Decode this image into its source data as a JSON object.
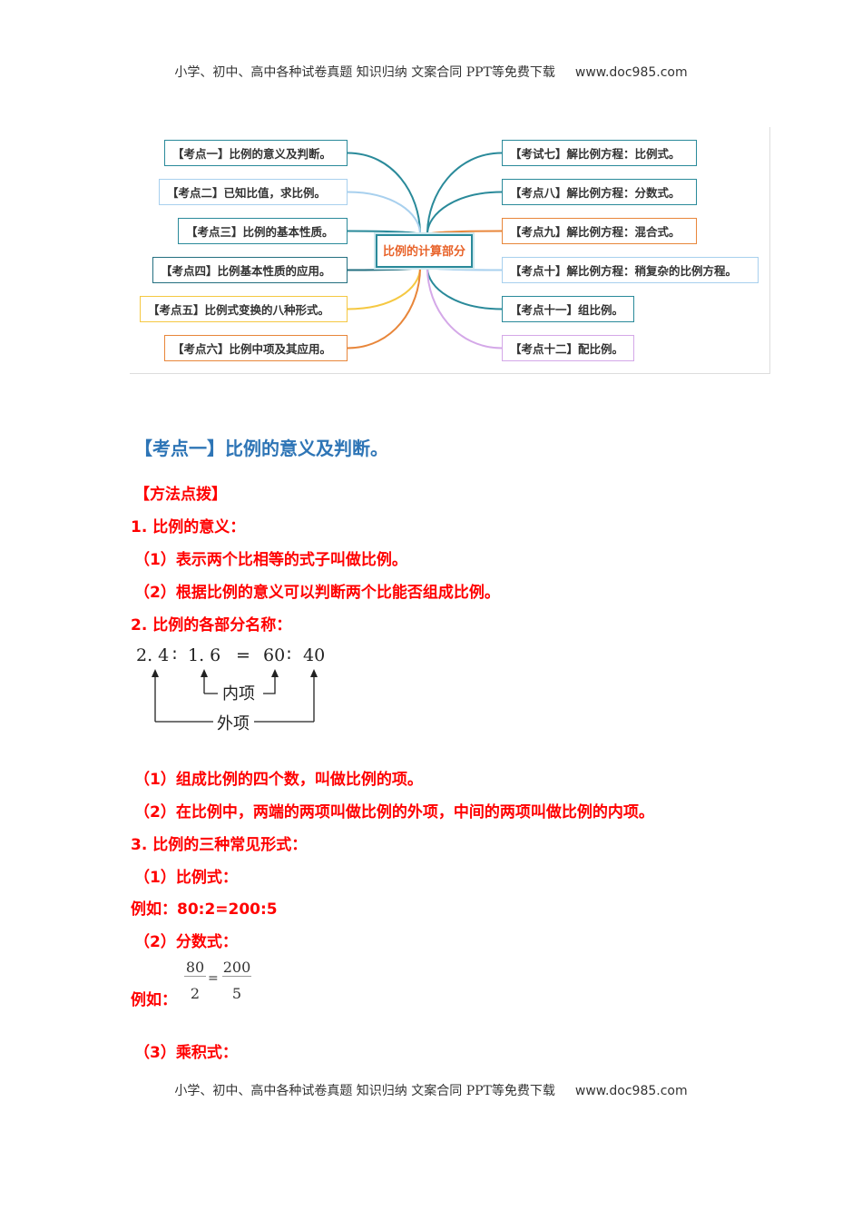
{
  "header": {
    "text": "小学、初中、高中各种试卷真题 知识归纳 文案合同 PPT等免费下载",
    "url": "www.doc985.com"
  },
  "mindmap": {
    "center": "比例的计算部分",
    "left": [
      {
        "label": "【考点一】比例的意义及判断。",
        "color": "#2a8a9a"
      },
      {
        "label": "【考点二】已知比值，求比例。",
        "color": "#a8d0ee"
      },
      {
        "label": "【考点三】比例的基本性质。",
        "color": "#2a8a9a"
      },
      {
        "label": "【考点四】比例基本性质的应用。",
        "color": "#236f80"
      },
      {
        "label": "【考点五】比例式变换的八种形式。",
        "color": "#f5c842"
      },
      {
        "label": "【考点六】比例中项及其应用。",
        "color": "#e8863a"
      }
    ],
    "right": [
      {
        "label": "【考试七】解比例方程：比例式。",
        "color": "#2a8a9a"
      },
      {
        "label": "【考点八】解比例方程：分数式。",
        "color": "#2a8a9a"
      },
      {
        "label": "【考点九】解比例方程：混合式。",
        "color": "#e8863a"
      },
      {
        "label": "【考点十】解比例方程：稍复杂的比例方程。",
        "color": "#a8d0ee"
      },
      {
        "label": "【考点十一】组比例。",
        "color": "#2a8a9a"
      },
      {
        "label": "【考点十二】配比例。",
        "color": "#d4a8e8"
      }
    ]
  },
  "section": {
    "title": "【考点一】比例的意义及判断。",
    "lines": [
      "【方法点拨】",
      "1. 比例的意义：",
      "（1）表示两个比相等的式子叫做比例。",
      "（2）根据比例的意义可以判断两个比能否组成比例。",
      "2. 比例的各部分名称："
    ],
    "diagram": {
      "a": "2. 4",
      "b": "1. 6",
      "eq": "=",
      "c": "60",
      "d": "40",
      "colon": "∶",
      "inner": "内项",
      "outer": "外项"
    },
    "lines2": [
      "（1）组成比例的四个数，叫做比例的项。",
      "（2）在比例中，两端的两项叫做比例的外项，中间的两项叫做比例的内项。",
      "3. 比例的三种常见形式：",
      "（1）比例式：",
      "例如：80:2=200:5",
      "（2）分数式："
    ],
    "fraction": {
      "prefix": "例如：",
      "n1": "80",
      "d1": "2",
      "eq": "=",
      "n2": "200",
      "d2": "5"
    },
    "last": "（3）乘积式："
  }
}
